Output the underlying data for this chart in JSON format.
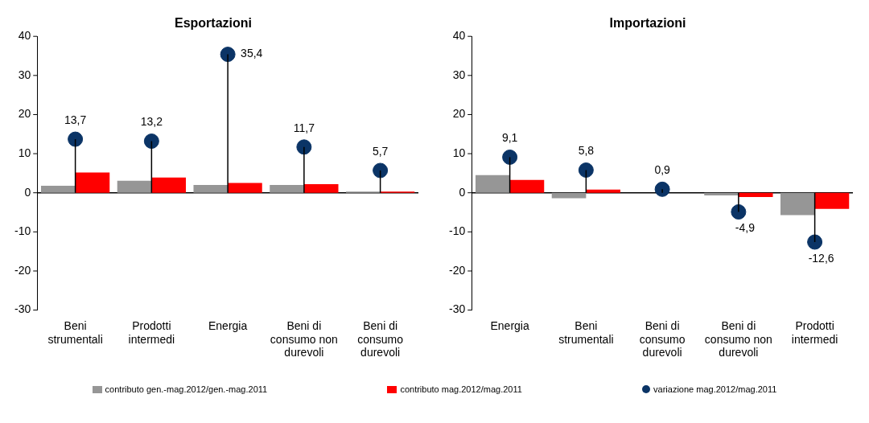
{
  "chart_data": [
    {
      "type": "bar",
      "title": "Esportazioni",
      "categories": [
        "Beni strumentali",
        "Prodotti intermedi",
        "Energia",
        "Beni di consumo non durevoli",
        "Beni di consumo durevoli"
      ],
      "ylim": [
        -30,
        40
      ],
      "yticks": [
        -30,
        -20,
        -10,
        0,
        10,
        20,
        30,
        40
      ],
      "legend": "bottom",
      "series": [
        {
          "name": "contributo gen.-mag.2012/gen.-mag.2011",
          "color": "#969696",
          "values": [
            1.8,
            3.1,
            2.0,
            2.0,
            0.3
          ]
        },
        {
          "name": "contributo mag.2012/mag.2011",
          "color": "#ff0000",
          "values": [
            5.2,
            3.9,
            2.5,
            2.2,
            0.3
          ]
        },
        {
          "name": "variazione mag.2012/mag.2011",
          "type": "lollipop",
          "color": "#0b3466",
          "values": [
            13.7,
            13.2,
            35.4,
            11.7,
            5.7
          ],
          "value_labels": [
            "13,7",
            "13,2",
            "35,4",
            "11,7",
            "5,7"
          ]
        }
      ]
    },
    {
      "type": "bar",
      "title": "Importazioni",
      "categories": [
        "Energia",
        "Beni strumentali",
        "Beni di consumo durevoli",
        "Beni di consumo non durevoli",
        "Prodotti intermedi"
      ],
      "ylim": [
        -30,
        40
      ],
      "yticks": [
        -30,
        -20,
        -10,
        0,
        10,
        20,
        30,
        40
      ],
      "legend": false,
      "series": [
        {
          "color": "#969696",
          "values": [
            4.5,
            -1.4,
            0.0,
            -0.7,
            -5.7
          ]
        },
        {
          "color": "#ff0000",
          "values": [
            3.3,
            0.8,
            0.0,
            -1.1,
            -4.1
          ]
        },
        {
          "type": "lollipop",
          "color": "#0b3466",
          "values": [
            9.1,
            5.8,
            0.9,
            -4.9,
            -12.6
          ],
          "value_labels": [
            "9,1",
            "5,8",
            "0,9",
            "-4,9",
            "-12,6"
          ]
        }
      ]
    }
  ]
}
